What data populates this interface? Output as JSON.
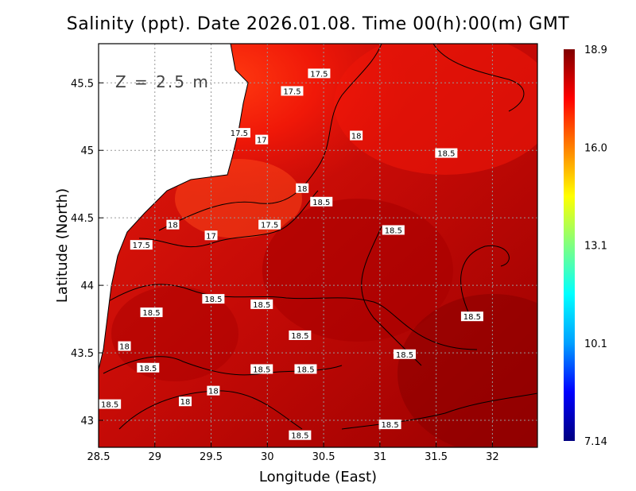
{
  "title": "Salinity (ppt). Date 2026.01.08. Time 00(h):00(m) GMT",
  "depth_label": "Z = 2.5 m",
  "xlabel": "Longitude (East)",
  "ylabel": "Latitude (North)",
  "xlim": [
    28.5,
    32.4
  ],
  "ylim": [
    42.8,
    45.79
  ],
  "xticks": [
    "28.5",
    "29",
    "29.5",
    "30",
    "30.5",
    "31",
    "31.5",
    "32"
  ],
  "yticks": [
    "45.5",
    "45",
    "44.5",
    "44",
    "43.5",
    "43"
  ],
  "grid": true,
  "colorbar": {
    "ticks": [
      "18.9",
      "16.0",
      "13.1",
      "10.1",
      "7.14"
    ],
    "min": 7.14,
    "max": 18.9,
    "colors": [
      "#000080",
      "#0000ff",
      "#00a0ff",
      "#00ffff",
      "#80ff80",
      "#ffff00",
      "#ff8000",
      "#ff0000",
      "#800000"
    ]
  },
  "land_color": "#ffffff",
  "contour_labels": [
    {
      "text": "17.5",
      "lon": 30.46,
      "lat": 45.57
    },
    {
      "text": "17.5",
      "lon": 30.22,
      "lat": 45.44
    },
    {
      "text": "17.5",
      "lon": 29.75,
      "lat": 45.13
    },
    {
      "text": "17",
      "lon": 29.95,
      "lat": 45.08
    },
    {
      "text": "18",
      "lon": 30.79,
      "lat": 45.11
    },
    {
      "text": "18.5",
      "lon": 31.59,
      "lat": 44.98
    },
    {
      "text": "18",
      "lon": 30.31,
      "lat": 44.72
    },
    {
      "text": "18.5",
      "lon": 30.48,
      "lat": 44.62
    },
    {
      "text": "18",
      "lon": 29.16,
      "lat": 44.45
    },
    {
      "text": "17",
      "lon": 29.5,
      "lat": 44.37
    },
    {
      "text": "17.5",
      "lon": 30.02,
      "lat": 44.45
    },
    {
      "text": "18.5",
      "lon": 31.12,
      "lat": 44.41
    },
    {
      "text": "17.5",
      "lon": 28.88,
      "lat": 44.3
    },
    {
      "text": "18.5",
      "lon": 29.52,
      "lat": 43.9
    },
    {
      "text": "18.5",
      "lon": 29.95,
      "lat": 43.86
    },
    {
      "text": "18.5",
      "lon": 28.97,
      "lat": 43.8
    },
    {
      "text": "18.5",
      "lon": 31.82,
      "lat": 43.77
    },
    {
      "text": "18.5",
      "lon": 30.29,
      "lat": 43.63
    },
    {
      "text": "18",
      "lon": 28.73,
      "lat": 43.55
    },
    {
      "text": "18.5",
      "lon": 31.22,
      "lat": 43.49
    },
    {
      "text": "18.5",
      "lon": 28.94,
      "lat": 43.39
    },
    {
      "text": "18.5",
      "lon": 29.95,
      "lat": 43.38
    },
    {
      "text": "18.5",
      "lon": 30.34,
      "lat": 43.38
    },
    {
      "text": "18",
      "lon": 29.52,
      "lat": 43.22
    },
    {
      "text": "18",
      "lon": 29.27,
      "lat": 43.14
    },
    {
      "text": "18.5",
      "lon": 28.6,
      "lat": 43.12
    },
    {
      "text": "18.5",
      "lon": 31.09,
      "lat": 42.97
    },
    {
      "text": "18.5",
      "lon": 30.29,
      "lat": 42.89
    }
  ]
}
